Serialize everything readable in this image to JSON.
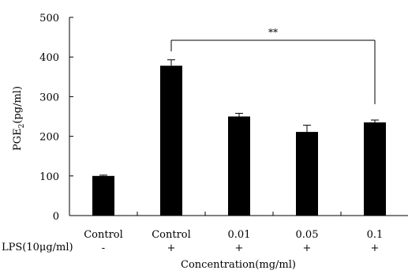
{
  "chart_data": {
    "type": "bar",
    "categories": [
      "Control",
      "Control",
      "0.01",
      "0.05",
      "0.1"
    ],
    "values": [
      100,
      378,
      250,
      211,
      235
    ],
    "errors": [
      2,
      15,
      8,
      17,
      6
    ],
    "lps_row": {
      "label": "LPS(10μg/ml)",
      "values": [
        "-",
        "+",
        "+",
        "+",
        "+"
      ]
    },
    "ylabel_main": "PGE",
    "ylabel_sub": "2",
    "ylabel_unit": "(pg/ml)",
    "xlabel": "Concentration(mg/ml)",
    "ylim": [
      0,
      500
    ],
    "yticks": [
      0,
      100,
      200,
      300,
      400,
      500
    ],
    "significance": {
      "from": 1,
      "to": 4,
      "label": "**"
    },
    "bar_color": "#000000"
  }
}
